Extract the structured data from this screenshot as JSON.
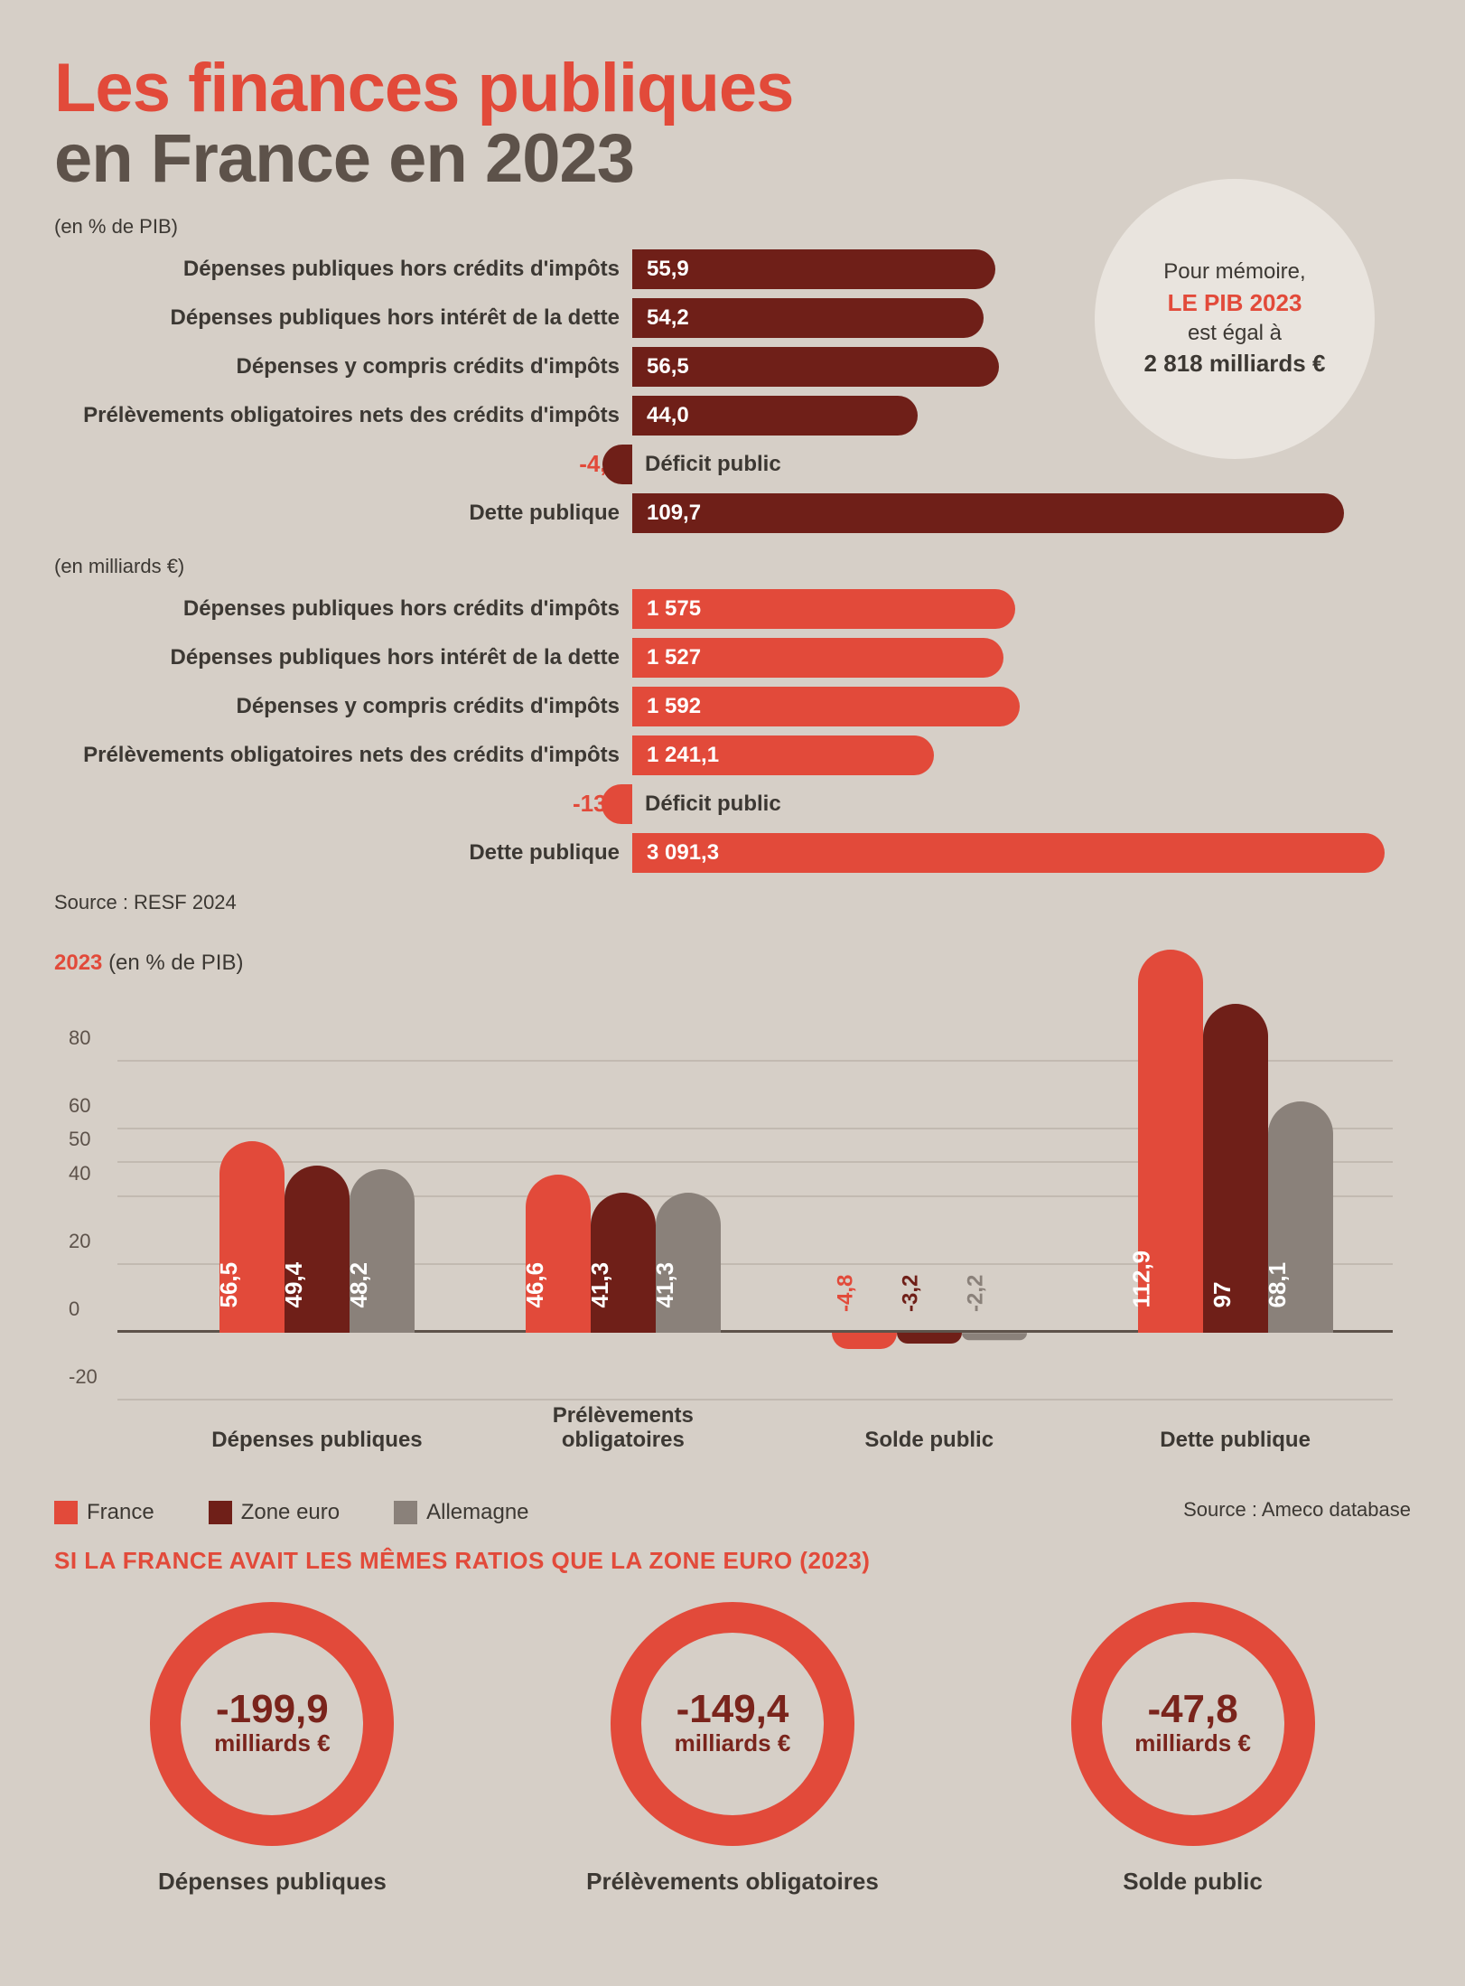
{
  "title": {
    "line1": "Les finances publiques",
    "line2": "en France en 2023"
  },
  "colors": {
    "dark_red": "#6f1f18",
    "red": "#e24a3a",
    "grey": "#8a817a",
    "text": "#3c3833",
    "bg": "#d6cfc7",
    "circle_bg": "#e9e4de"
  },
  "memo": {
    "l1": "Pour mémoire,",
    "l2": "LE PIB 2023",
    "l3": "est égal à",
    "l4": "2 818 milliards €"
  },
  "hbars_pct": {
    "unit": "(en % de PIB)",
    "max": 120,
    "bar_color": "#6f1f18",
    "neg_color": "#6f1f18",
    "rows": [
      {
        "label": "Dépenses publiques hors crédits d'impôts",
        "value": 55.9,
        "display": "55,9"
      },
      {
        "label": "Dépenses publiques hors intérêt de la dette",
        "value": 54.2,
        "display": "54,2"
      },
      {
        "label": "Dépenses y compris crédits d'impôts",
        "value": 56.5,
        "display": "56,5"
      },
      {
        "label": "Prélèvements obligatoires nets des crédits d'impôts",
        "value": 44.0,
        "display": "44,0"
      },
      {
        "label": "Déficit public",
        "value": -4.9,
        "display": "-4,9",
        "neg_label": "-4,9"
      },
      {
        "label": "Dette publique",
        "value": 109.7,
        "display": "109,7"
      }
    ]
  },
  "hbars_eur": {
    "unit": "(en milliards €)",
    "max": 3200,
    "bar_color": "#e24a3a",
    "neg_color": "#e24a3a",
    "rows": [
      {
        "label": "Dépenses publiques hors crédits d'impôts",
        "value": 1575,
        "display": "1 575"
      },
      {
        "label": "Dépenses publiques hors intérêt de la dette",
        "value": 1527,
        "display": "1 527"
      },
      {
        "label": "Dépenses y compris crédits d'impôts",
        "value": 1592,
        "display": "1 592"
      },
      {
        "label": "Prélèvements obligatoires nets des crédits d'impôts",
        "value": 1241.1,
        "display": "1 241,1"
      },
      {
        "label": "Déficit public",
        "value": -138,
        "display": "-138",
        "neg_label": "-138"
      },
      {
        "label": "Dette publique",
        "value": 3091.3,
        "display": "3 091,3"
      }
    ]
  },
  "source1": "Source : RESF 2024",
  "chart2": {
    "title_year": "2023",
    "title_rest": "(en % de PIB)",
    "ylim": [
      -20,
      100
    ],
    "yticks": [
      -20,
      0,
      20,
      40,
      50,
      60,
      80
    ],
    "series": [
      {
        "name": "France",
        "color": "#e24a3a"
      },
      {
        "name": "Zone euro",
        "color": "#6f1f18"
      },
      {
        "name": "Allemagne",
        "color": "#8a817a"
      }
    ],
    "categories": [
      {
        "label": "Dépenses publiques",
        "vals": [
          56.5,
          49.4,
          48.2
        ],
        "disp": [
          "56,5",
          "49,4",
          "48,2"
        ]
      },
      {
        "label": "Prélèvements\nobligatoires",
        "vals": [
          46.6,
          41.3,
          41.3
        ],
        "disp": [
          "46,6",
          "41,3",
          "41,3"
        ]
      },
      {
        "label": "Solde public",
        "vals": [
          -4.8,
          -3.2,
          -2.2
        ],
        "disp": [
          "-4,8",
          "-3,2",
          "-2,2"
        ]
      },
      {
        "label": "Dette publique",
        "vals": [
          112.9,
          97,
          68.1
        ],
        "disp": [
          "112,9",
          "97",
          "68,1"
        ]
      }
    ],
    "legend": [
      "France",
      "Zone euro",
      "Allemagne"
    ],
    "source": "Source : Ameco database"
  },
  "ratios": {
    "title": "SI LA FRANCE AVAIT LES MÊMES RATIOS QUE LA ZONE EURO (2023)",
    "ring_border": "#e24a3a",
    "value_color": "#7a241c",
    "items": [
      {
        "value": "-199,9",
        "unit": "milliards €",
        "label": "Dépenses publiques"
      },
      {
        "value": "-149,4",
        "unit": "milliards €",
        "label": "Prélèvements obligatoires"
      },
      {
        "value": "-47,8",
        "unit": "milliards €",
        "label": "Solde public"
      }
    ]
  }
}
